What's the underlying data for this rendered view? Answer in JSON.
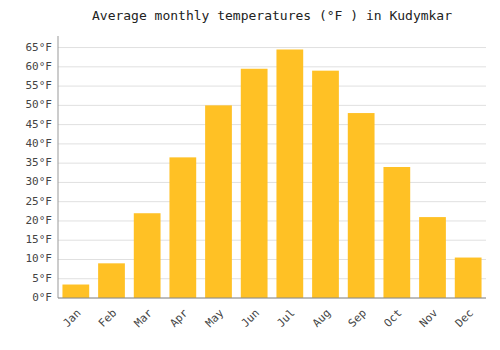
{
  "chart_data": {
    "type": "bar",
    "title": "Average monthly temperatures (°F ) in Kudymkar",
    "categories": [
      "Jan",
      "Feb",
      "Mar",
      "Apr",
      "May",
      "Jun",
      "Jul",
      "Aug",
      "Sep",
      "Oct",
      "Nov",
      "Dec"
    ],
    "values": [
      3.5,
      9.0,
      22.0,
      36.5,
      50.0,
      59.5,
      64.5,
      59.0,
      48.0,
      34.0,
      21.0,
      10.5
    ],
    "color": "#FFC125",
    "ylim": [
      0,
      68
    ],
    "yticks": [
      {
        "value": 0,
        "label": "0°F"
      },
      {
        "value": 5,
        "label": "5°F"
      },
      {
        "value": 10,
        "label": "10°F"
      },
      {
        "value": 15,
        "label": "15°F"
      },
      {
        "value": 20,
        "label": "20°F"
      },
      {
        "value": 25,
        "label": "25°F"
      },
      {
        "value": 30,
        "label": "30°F"
      },
      {
        "value": 35,
        "label": "35°F"
      },
      {
        "value": 40,
        "label": "40°F"
      },
      {
        "value": 45,
        "label": "45°F"
      },
      {
        "value": 50,
        "label": "50°F"
      },
      {
        "value": 55,
        "label": "55°F"
      },
      {
        "value": 60,
        "label": "60°F"
      },
      {
        "value": 65,
        "label": "65°F"
      }
    ],
    "grid": true
  }
}
